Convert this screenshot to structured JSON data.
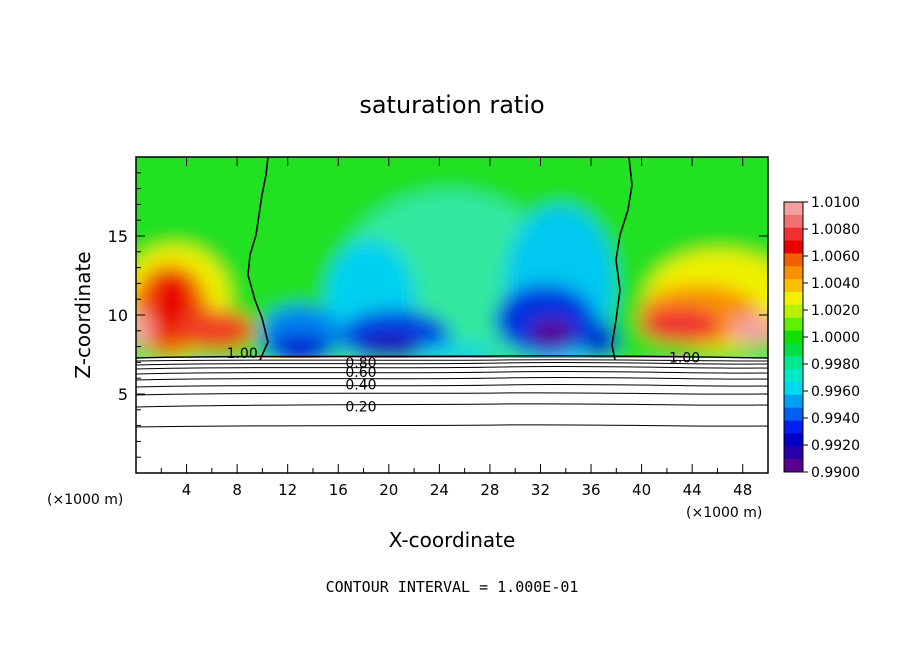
{
  "chart_data": {
    "type": "heatmap",
    "title": "saturation ratio",
    "xlabel": "X-coordinate",
    "ylabel": "Z-coordinate",
    "x_unit_left": "(×1000 m)",
    "x_unit_right": "(×1000 m)",
    "footer": "CONTOUR INTERVAL = 1.000E-01",
    "xlim": [
      0,
      50
    ],
    "ylim": [
      0,
      20
    ],
    "x_ticks": [
      4,
      8,
      12,
      16,
      20,
      24,
      28,
      32,
      36,
      40,
      44,
      48
    ],
    "y_ticks": [
      5,
      10,
      15
    ],
    "colorbar": {
      "labels": [
        "1.0100",
        "1.0080",
        "1.0060",
        "1.0040",
        "1.0020",
        "1.0000",
        "0.9980",
        "0.9960",
        "0.9940",
        "0.9920",
        "0.9900"
      ],
      "range": [
        0.99,
        1.01
      ],
      "colors": [
        "#f4a0a0",
        "#f07070",
        "#f03030",
        "#e80000",
        "#f06000",
        "#f89000",
        "#f8c000",
        "#f0f000",
        "#b8f000",
        "#60f000",
        "#10e000",
        "#00e040",
        "#00e890",
        "#00e8c8",
        "#00d8f0",
        "#00a0f0",
        "#0060f0",
        "#0020f0",
        "#0000c8",
        "#2800a8",
        "#5a0090"
      ]
    },
    "contour_labels": [
      {
        "text": "1.00",
        "x": 8.4,
        "z": 7.6
      },
      {
        "text": "1.00",
        "x": 43.4,
        "z": 7.3
      },
      {
        "text": "0.80",
        "x": 17.8,
        "z": 7.0
      },
      {
        "text": "0.60",
        "x": 17.8,
        "z": 6.4
      },
      {
        "text": "0.40",
        "x": 17.8,
        "z": 5.6
      },
      {
        "text": "0.20",
        "x": 17.8,
        "z": 4.2
      }
    ]
  }
}
